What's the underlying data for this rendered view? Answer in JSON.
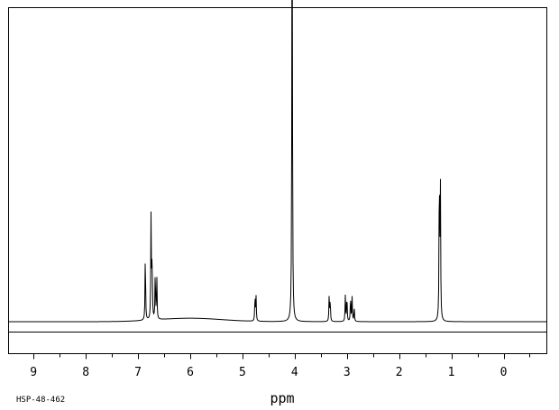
{
  "chart_data": {
    "type": "line",
    "title": "",
    "xlabel": "ppm",
    "ylabel": "",
    "x_reversed": true,
    "xlim": [
      9.47,
      -0.82
    ],
    "ylim": [
      0,
      1
    ],
    "grid": false,
    "major_ticks": [
      9,
      8,
      7,
      6,
      5,
      4,
      3,
      2,
      1,
      0
    ],
    "tick_labels": [
      "9",
      "8",
      "7",
      "6",
      "5",
      "4",
      "3",
      "2",
      "1",
      "0"
    ],
    "minor_tick_step": 0.5,
    "code": "HSP-48-462",
    "baseline_hump": {
      "center": 6.0,
      "width": 0.85,
      "height": 0.012,
      "from": 7.75,
      "to": 4.2
    },
    "peaks": [
      {
        "ppm": 6.86,
        "height": 0.245
      },
      {
        "ppm": 6.75,
        "height": 0.365
      },
      {
        "ppm": 6.73,
        "height": 0.225
      },
      {
        "ppm": 6.67,
        "height": 0.175
      },
      {
        "ppm": 6.64,
        "height": 0.15
      },
      {
        "ppm": 4.76,
        "height": 0.09
      },
      {
        "ppm": 4.74,
        "height": 0.085
      },
      {
        "ppm": 4.05,
        "height": 1.0
      },
      {
        "ppm": 4.047,
        "height": 0.86
      },
      {
        "ppm": 3.34,
        "height": 0.085
      },
      {
        "ppm": 3.32,
        "height": 0.08
      },
      {
        "ppm": 3.03,
        "height": 0.09
      },
      {
        "ppm": 3.0,
        "height": 0.095
      },
      {
        "ppm": 2.93,
        "height": 0.09
      },
      {
        "ppm": 2.9,
        "height": 0.085
      },
      {
        "ppm": 2.86,
        "height": 0.05
      },
      {
        "ppm": 1.23,
        "height": 0.56
      },
      {
        "ppm": 1.21,
        "height": 0.48
      }
    ]
  }
}
